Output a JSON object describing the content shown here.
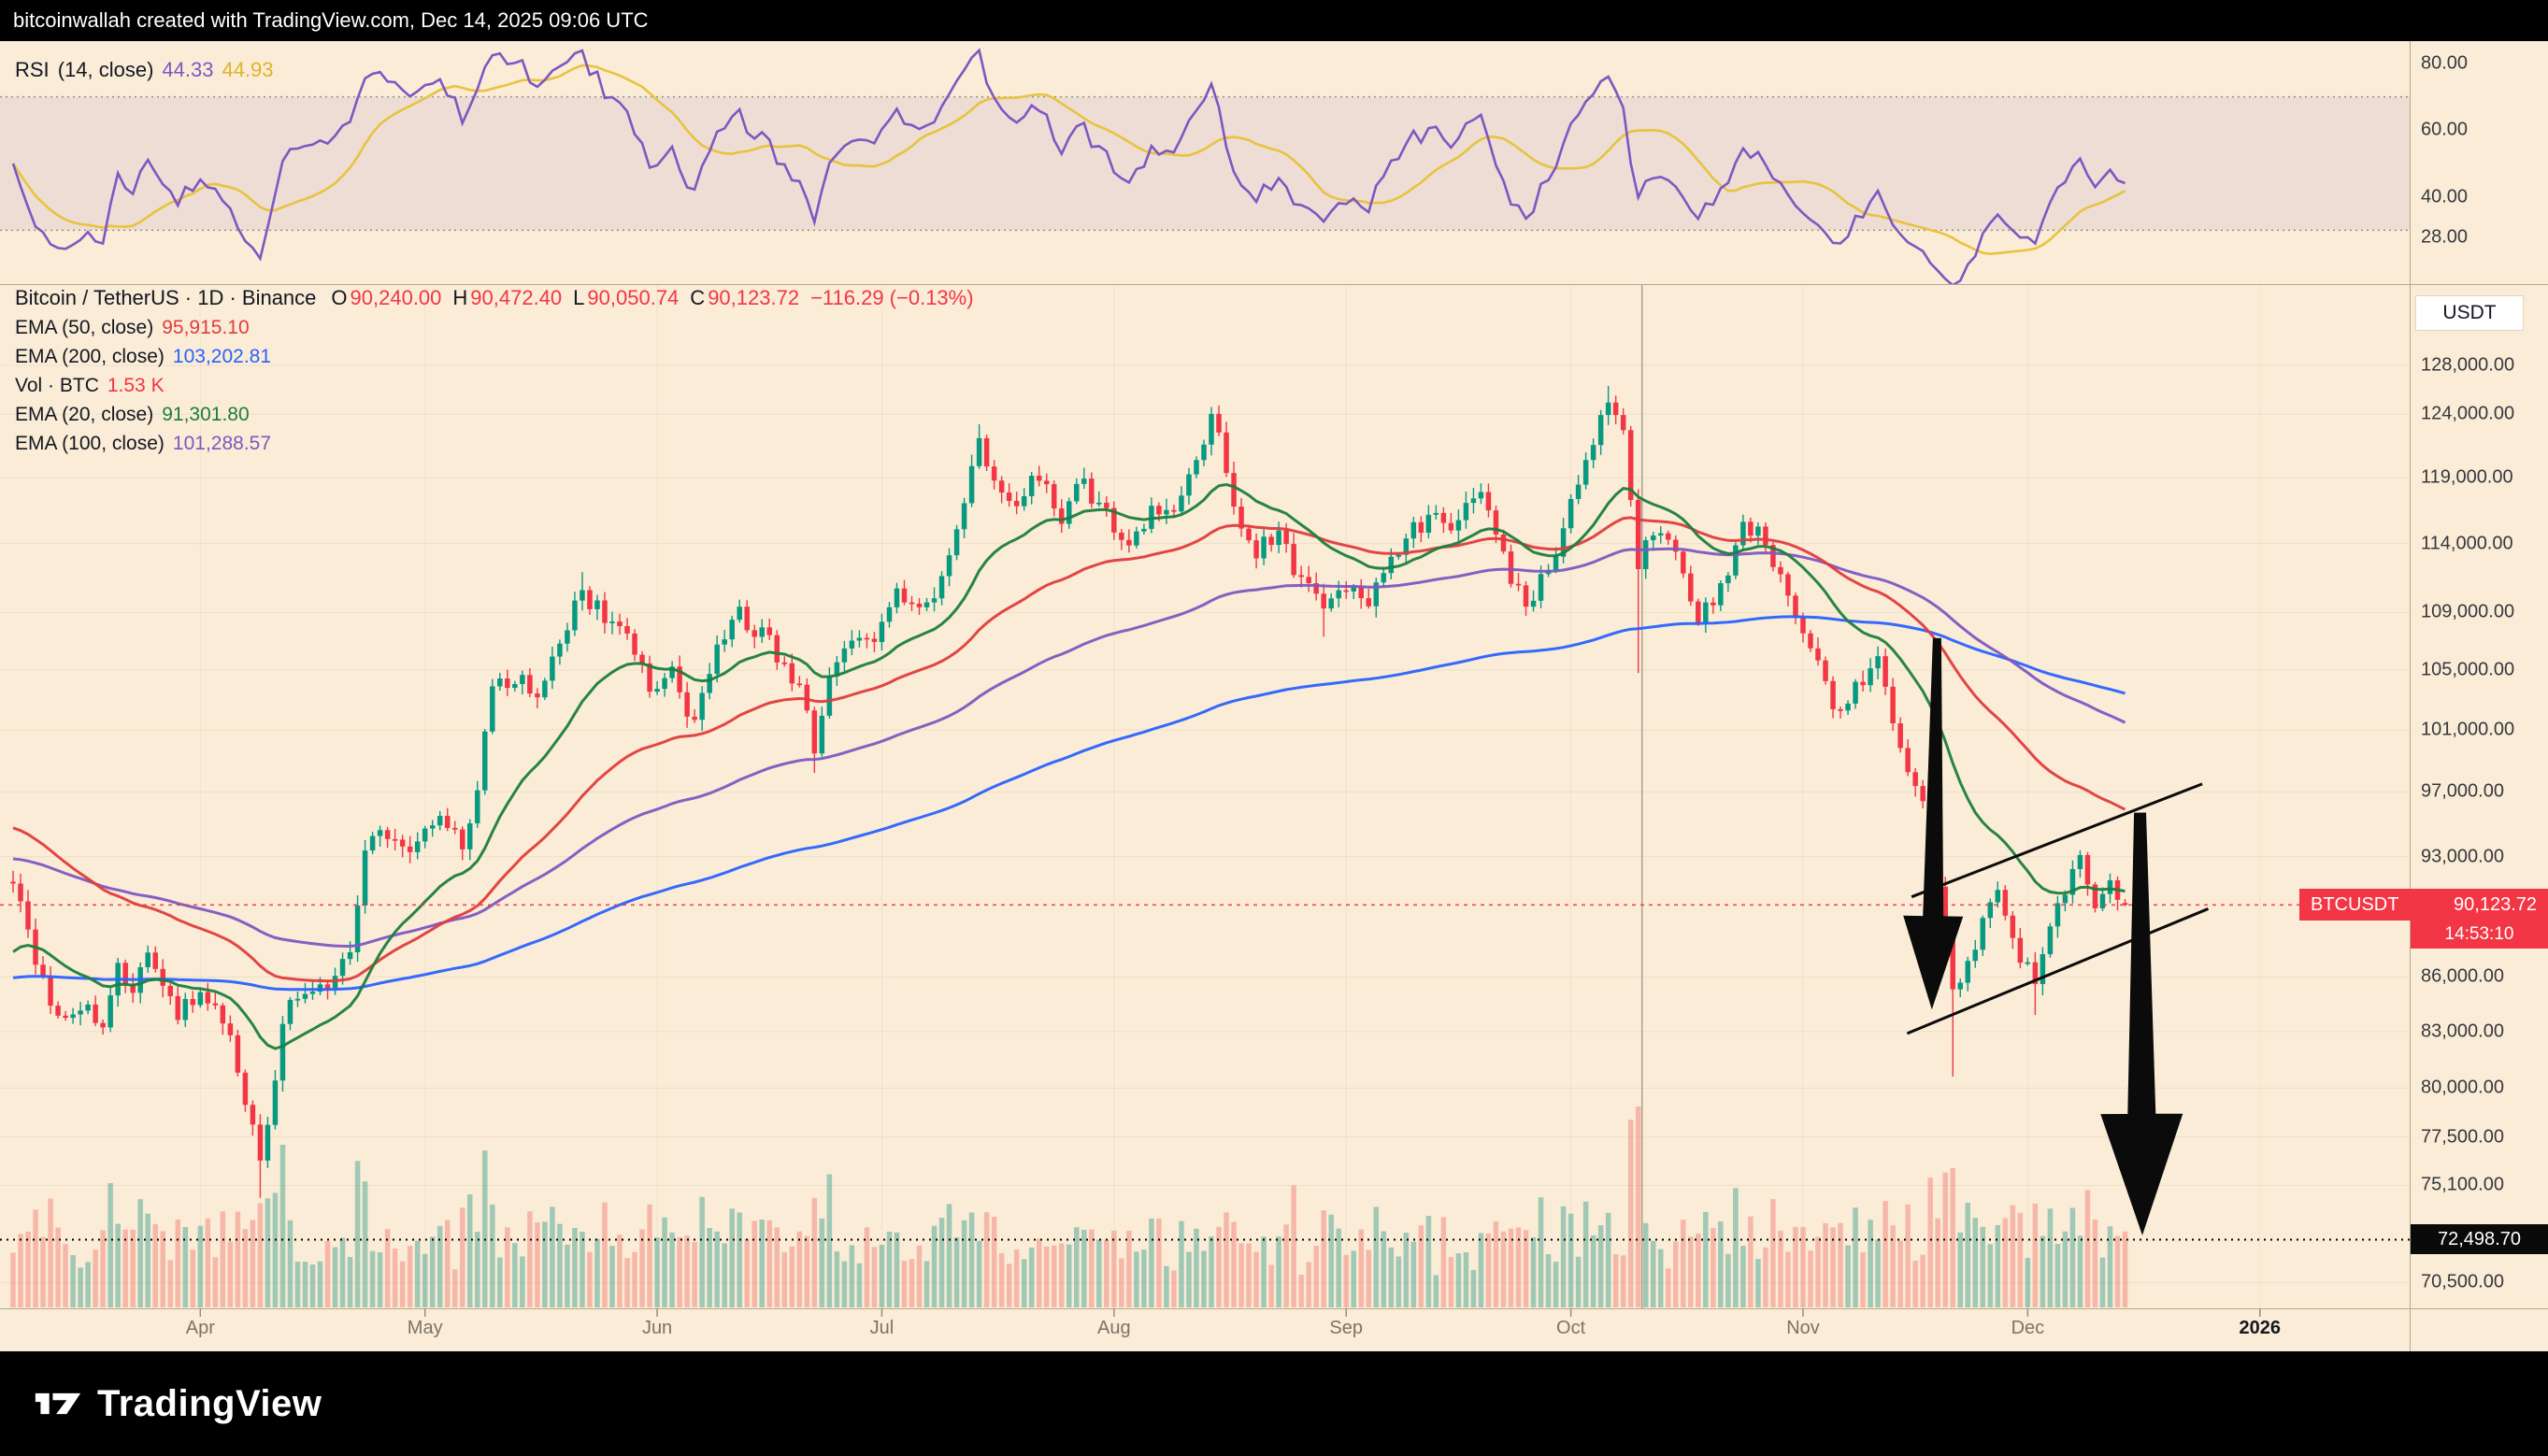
{
  "header_bar": {
    "text": "bitcoinwallah created with TradingView.com, Dec 14, 2025 09:06 UTC"
  },
  "colors": {
    "up": "#089981",
    "down": "#f23645",
    "vol_up": "rgba(34,150,136,0.42)",
    "vol_down": "rgba(239,83,80,0.34)",
    "ema20": "#1b7e3c",
    "ema50": "#e03c3c",
    "ema100": "#7e57c2",
    "ema200": "#2962ff",
    "rsi": "#7e57c2",
    "rsi_ma": "#e8c33f",
    "annotation": "#0b0b0b",
    "price_line": "#f23645",
    "level_line": "#000000",
    "background": "#faecd6"
  },
  "rsi_pane": {
    "legend": {
      "title": "RSI",
      "params": "(14, close)",
      "value1": "44.33",
      "value2": "44.93"
    },
    "axis_labels": [
      {
        "value": 80,
        "label": "80.00"
      },
      {
        "value": 60,
        "label": "60.00"
      },
      {
        "value": 40,
        "label": "40.00"
      },
      {
        "value": 28,
        "label": "28.00"
      }
    ]
  },
  "main_pane": {
    "legend": {
      "title": "Bitcoin / TetherUS · 1D · Binance",
      "ohlc": {
        "o_label": "O",
        "o": "90,240.00",
        "h_label": "H",
        "h": "90,472.40",
        "l_label": "L",
        "l": "90,050.74",
        "c_label": "C",
        "c": "90,123.72",
        "change": "−116.29 (−0.13%)"
      },
      "indicators": [
        {
          "id": "ema-50",
          "label": "EMA (50, close)",
          "value": "95,915.10",
          "color": "#e03c3c"
        },
        {
          "id": "ema-200",
          "label": "EMA (200, close)",
          "value": "103,202.81",
          "color": "#2962ff"
        },
        {
          "id": "vol",
          "label": "Vol · BTC",
          "value": "1.53 K",
          "color": "#f23645"
        },
        {
          "id": "ema-20",
          "label": "EMA (20, close)",
          "value": "91,301.80",
          "color": "#1b7e3c"
        },
        {
          "id": "ema-100",
          "label": "EMA (100, close)",
          "value": "101,288.57",
          "color": "#7e57c2"
        }
      ]
    },
    "currency_badge": "USDT",
    "price_axis_labels": [
      {
        "value": 128000,
        "label": "128,000.00"
      },
      {
        "value": 124000,
        "label": "124,000.00"
      },
      {
        "value": 119000,
        "label": "119,000.00"
      },
      {
        "value": 114000,
        "label": "114,000.00"
      },
      {
        "value": 109000,
        "label": "109,000.00"
      },
      {
        "value": 105000,
        "label": "105,000.00"
      },
      {
        "value": 101000,
        "label": "101,000.00"
      },
      {
        "value": 97000,
        "label": "97,000.00"
      },
      {
        "value": 93000,
        "label": "93,000.00"
      },
      {
        "value": 86000,
        "label": "86,000.00"
      },
      {
        "value": 83000,
        "label": "83,000.00"
      },
      {
        "value": 80000,
        "label": "80,000.00"
      },
      {
        "value": 77500,
        "label": "77,500.00"
      },
      {
        "value": 75100,
        "label": "75,100.00"
      },
      {
        "value": 70500,
        "label": "70,500.00"
      }
    ],
    "price_line": {
      "symbol": "BTCUSDT",
      "price_label": "90,123.72",
      "price": 90123.72,
      "countdown": "14:53:10"
    },
    "level_line": {
      "label": "72,498.70",
      "price": 72498.7
    }
  },
  "time_axis": {
    "labels": [
      {
        "day": 25,
        "label": "Apr"
      },
      {
        "day": 55,
        "label": "May"
      },
      {
        "day": 86,
        "label": "Jun"
      },
      {
        "day": 116,
        "label": "Jul"
      },
      {
        "day": 147,
        "label": "Aug"
      },
      {
        "day": 178,
        "label": "Sep"
      },
      {
        "day": 208,
        "label": "Oct"
      },
      {
        "day": 239,
        "label": "Nov"
      },
      {
        "day": 269,
        "label": "Dec"
      },
      {
        "day": 300,
        "label": "2026",
        "emphasis": true
      }
    ]
  },
  "footer": {
    "brand": "TradingView"
  },
  "chart_data": {
    "type": "candlestick",
    "title": "Bitcoin / TetherUS",
    "symbol": "BTCUSDT",
    "exchange": "Binance",
    "interval": "1D",
    "seed": 20251214,
    "last": {
      "open": 90240.0,
      "high": 90472.4,
      "low": 90050.74,
      "close": 90123.72,
      "change": -116.29,
      "change_pct": -0.13
    },
    "y_axis": {
      "scale": "log",
      "top_price": 134950,
      "bottom_price": 69330
    },
    "x_axis": {
      "data_days": 283,
      "days_total": 320,
      "start": "early March",
      "end": "Dec 14"
    },
    "rsi_scale": {
      "top_value": 85,
      "bottom_value": 15,
      "band_upper": 70,
      "band_lower": 30,
      "current": 44.33,
      "ma_current": 44.93,
      "period": 14
    },
    "emas": [
      {
        "period": 200,
        "start": 85900,
        "current": 103202.81,
        "color_key": "ema200"
      },
      {
        "period": 100,
        "start": 92900,
        "current": 101288.57,
        "color_key": "ema100"
      },
      {
        "period": 50,
        "start": 94900,
        "current": 95915.1,
        "color_key": "ema50"
      },
      {
        "period": 20,
        "start": 87000,
        "current": 91301.8,
        "color_key": "ema20"
      }
    ],
    "volume_last_label": "1.53 K",
    "price_anchors": [
      [
        0,
        91500
      ],
      [
        2,
        88500
      ],
      [
        3,
        86000
      ],
      [
        5,
        84200
      ],
      [
        7,
        83500
      ],
      [
        10,
        84500
      ],
      [
        12,
        83200
      ],
      [
        14,
        86300
      ],
      [
        16,
        85200
      ],
      [
        18,
        87800
      ],
      [
        20,
        86200
      ],
      [
        22,
        83500
      ],
      [
        25,
        85200
      ],
      [
        27,
        84000
      ],
      [
        29,
        83000
      ],
      [
        31,
        79200
      ],
      [
        33,
        76800,
        74500,
        null
      ],
      [
        34,
        78800
      ],
      [
        36,
        83500
      ],
      [
        39,
        85600
      ],
      [
        42,
        84800
      ],
      [
        45,
        87300
      ],
      [
        47,
        93500
      ],
      [
        50,
        94600
      ],
      [
        52,
        93800
      ],
      [
        54,
        94200
      ],
      [
        57,
        96500
      ],
      [
        60,
        94300
      ],
      [
        62,
        96900
      ],
      [
        64,
        103200
      ],
      [
        67,
        104100
      ],
      [
        70,
        103500
      ],
      [
        73,
        106400
      ],
      [
        76,
        110700,
        null,
        111900
      ],
      [
        79,
        108900
      ],
      [
        82,
        107200
      ],
      [
        85,
        103800
      ],
      [
        88,
        105600
      ],
      [
        91,
        101500
      ],
      [
        94,
        105700
      ],
      [
        97,
        108600
      ],
      [
        101,
        107000
      ],
      [
        105,
        103300
      ],
      [
        107,
        99500,
        98200,
        null
      ],
      [
        109,
        105200
      ],
      [
        112,
        107100
      ],
      [
        115,
        107300
      ],
      [
        118,
        109600
      ],
      [
        121,
        108100
      ],
      [
        124,
        111200
      ],
      [
        126,
        115900
      ],
      [
        129,
        122800,
        null,
        123200
      ],
      [
        131,
        118700
      ],
      [
        134,
        118000
      ],
      [
        137,
        119700
      ],
      [
        140,
        115100
      ],
      [
        143,
        118200
      ],
      [
        146,
        115700
      ],
      [
        149,
        113400
      ],
      [
        152,
        116900
      ],
      [
        155,
        116500
      ],
      [
        158,
        119000
      ],
      [
        160,
        123300,
        null,
        124500
      ],
      [
        163,
        117400
      ],
      [
        166,
        113500
      ],
      [
        169,
        115000
      ],
      [
        172,
        111100
      ],
      [
        175,
        108400,
        107300,
        null
      ],
      [
        178,
        110900
      ],
      [
        181,
        110600
      ],
      [
        184,
        112100
      ],
      [
        187,
        114300
      ],
      [
        190,
        116000
      ],
      [
        193,
        115500
      ],
      [
        196,
        117100
      ],
      [
        199,
        112800
      ],
      [
        202,
        109200
      ],
      [
        205,
        112500
      ],
      [
        208,
        116600
      ],
      [
        211,
        122500
      ],
      [
        213,
        125900,
        null,
        126300
      ],
      [
        215,
        121700
      ],
      [
        217,
        111500,
        104800,
        null
      ],
      [
        219,
        114800
      ],
      [
        222,
        112900
      ],
      [
        225,
        108900
      ],
      [
        228,
        111000
      ],
      [
        231,
        114700
      ],
      [
        234,
        114300
      ],
      [
        237,
        110100
      ],
      [
        240,
        107300
      ],
      [
        243,
        101500
      ],
      [
        246,
        103600
      ],
      [
        249,
        105300
      ],
      [
        252,
        98800
      ],
      [
        255,
        95600
      ],
      [
        257,
        92000
      ],
      [
        259,
        85300,
        80600,
        null
      ],
      [
        262,
        87900
      ],
      [
        265,
        91000
      ],
      [
        268,
        86800
      ],
      [
        270,
        86100,
        83900,
        null
      ],
      [
        272,
        89800
      ],
      [
        274,
        91200
      ],
      [
        276,
        92700
      ],
      [
        278,
        90400
      ],
      [
        280,
        91600
      ],
      [
        282,
        90123.72
      ]
    ],
    "annotations": {
      "trendlines": [
        {
          "d1": 253.5,
          "p1": 90600,
          "d2": 292.3,
          "p2": 97500
        },
        {
          "d1": 252.9,
          "p1": 82900,
          "d2": 293.1,
          "p2": 89900
        }
      ],
      "arrows": [
        {
          "tail_d": 256.9,
          "tail_p": 107200,
          "tip_d": 256.2,
          "tip_p": 84200,
          "tail_w": 9,
          "shaft_w": 22,
          "head_w": 64,
          "head_len": 100
        },
        {
          "tail_d": 284.0,
          "tail_p": 95700,
          "tip_d": 284.3,
          "tip_p": 72700,
          "tail_w": 13,
          "shaft_w": 30,
          "head_w": 88,
          "head_len": 130
        }
      ],
      "vline_day": 217.5
    }
  }
}
